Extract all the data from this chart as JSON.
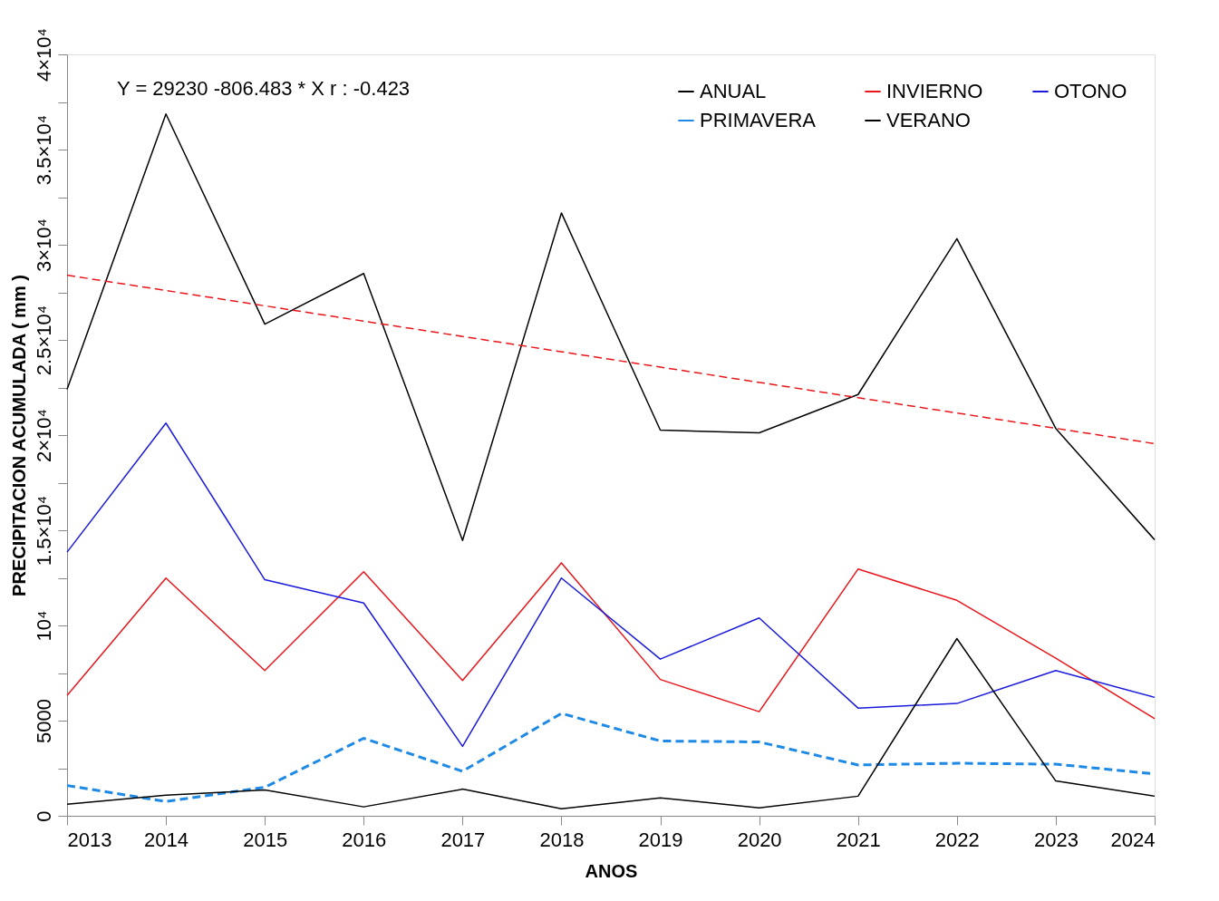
{
  "chart_data": {
    "type": "line",
    "xlabel": "ANOS",
    "ylabel": "PRECIPITACION ACUMULADA ( mm )",
    "x": [
      2013,
      2014,
      2015,
      2016,
      2017,
      2018,
      2019,
      2020,
      2021,
      2022,
      2023,
      2024
    ],
    "xlim": [
      2013,
      2024
    ],
    "xticks": [
      2013,
      2014,
      2015,
      2016,
      2017,
      2018,
      2019,
      2020,
      2021,
      2022,
      2023,
      2024
    ],
    "ylim": [
      0,
      40000
    ],
    "yticks": [
      0,
      {
        "value": 2500,
        "label": null
      },
      5000,
      {
        "value": 7500,
        "label": null
      },
      {
        "value": 10000,
        "label": "10⁴"
      },
      {
        "value": 12500,
        "label": null
      },
      {
        "value": 15000,
        "label": "1.5×10⁴"
      },
      {
        "value": 17500,
        "label": null
      },
      {
        "value": 20000,
        "label": "2×10⁴"
      },
      {
        "value": 22500,
        "label": null
      },
      {
        "value": 25000,
        "label": "2.5×10⁴"
      },
      {
        "value": 27500,
        "label": null
      },
      {
        "value": 30000,
        "label": "3×10⁴"
      },
      {
        "value": 32500,
        "label": null
      },
      {
        "value": 35000,
        "label": "3.5×10⁴"
      },
      {
        "value": 37500,
        "label": null
      },
      {
        "value": 40000,
        "label": "4×10⁴"
      }
    ],
    "grid": false,
    "legend": "top right",
    "marker": "none",
    "annotations": [
      "Y = 29230 -806.483 * X    r : -0.423"
    ],
    "series": [
      {
        "name": "ANUAL",
        "color": "#000000",
        "values": [
          22410,
          36870,
          25830,
          28490,
          14460,
          31670,
          20260,
          20120,
          22130,
          30320,
          20350,
          14500
        ]
      },
      {
        "name": "INVIERNO",
        "color": "#e8161b",
        "values": [
          6320,
          12490,
          7630,
          12820,
          7110,
          13290,
          7160,
          5470,
          12960,
          11320,
          8280,
          5100
        ]
      },
      {
        "name": "OTONO",
        "color": "#1a1adb",
        "values": [
          13850,
          20630,
          12400,
          11180,
          3650,
          12490,
          8230,
          10390,
          5660,
          5900,
          7630,
          6220
        ]
      },
      {
        "name": "PRIMAVERA",
        "color": "#1e8ae6",
        "line_style": "dashed",
        "values": [
          1590,
          750,
          1500,
          4070,
          2340,
          5380,
          3930,
          3880,
          2670,
          2760,
          2710,
          2200
        ]
      },
      {
        "name": "VERANO",
        "color": "#000000",
        "values": [
          610,
          1080,
          1360,
          470,
          1400,
          370,
          940,
          420,
          1030,
          9310,
          1830,
          1030
        ]
      },
      {
        "type": "line",
        "color": "#e8161b",
        "line_style": "dashed",
        "x": [
          2013,
          2024
        ],
        "values": [
          28400,
          19550
        ]
      }
    ]
  }
}
